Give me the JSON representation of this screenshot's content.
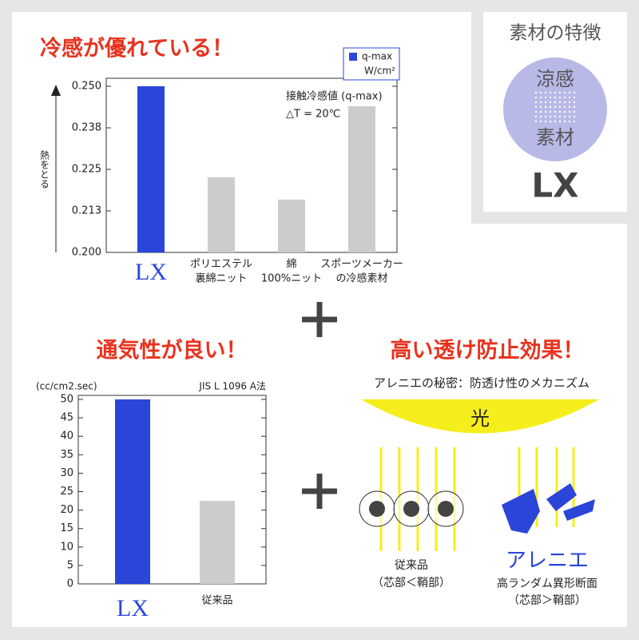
{
  "sidebar": {
    "title": "素材の特徴",
    "badge": [
      "涼感",
      "素材"
    ],
    "name": "LX"
  },
  "chart_data": [
    {
      "type": "bar",
      "title": "冷感が優れている！",
      "categories": [
        [
          "LX"
        ],
        [
          "ポリエステル",
          "裏綿ニット"
        ],
        [
          "綿",
          "100%ニット"
        ],
        [
          "スポーツメーカー",
          "の冷感素材"
        ]
      ],
      "values": [
        0.25,
        0.2226,
        0.2159,
        0.244
      ],
      "colors": [
        "#2b45d8",
        "#cccccc",
        "#cccccc",
        "#cccccc"
      ],
      "ylim": [
        0.2,
        0.25
      ],
      "yticks": [
        {
          "value": 0.2,
          "label": "0.200"
        },
        {
          "value": 0.2125,
          "label": "0.213"
        },
        {
          "value": 0.225,
          "label": "0.225"
        },
        {
          "value": 0.2375,
          "label": "0.238"
        },
        {
          "value": 0.25,
          "label": "0.250"
        }
      ],
      "y_label": "熱をとる",
      "legend": [
        "q-max",
        "W/cm²"
      ],
      "annotations": [
        "接触冷感値 (q-max)",
        "△T = 20℃"
      ]
    },
    {
      "type": "bar",
      "title": "通気性が良い！",
      "categories": [
        [
          "LX"
        ],
        [
          "従来品"
        ]
      ],
      "values": [
        50,
        22.5
      ],
      "colors": [
        "#2b45d8",
        "#cccccc"
      ],
      "ylim": [
        0,
        50
      ],
      "yticks": [
        0,
        5,
        10,
        15,
        20,
        25,
        30,
        35,
        40,
        45,
        50
      ],
      "y_label": "(cc/cm2.sec)",
      "annotations": [
        "JIS L 1096  A法"
      ]
    }
  ],
  "mechanism": {
    "title": "高い透け防止効果！",
    "subtitle": "アレニエの秘密：防透け性のメカニズム",
    "light": "光",
    "left": [
      "従来品",
      "（芯部＜鞘部）"
    ],
    "right_name": "アレニエ",
    "right": [
      "高ランダム異形断面",
      "（芯部＞鞘部）"
    ]
  }
}
